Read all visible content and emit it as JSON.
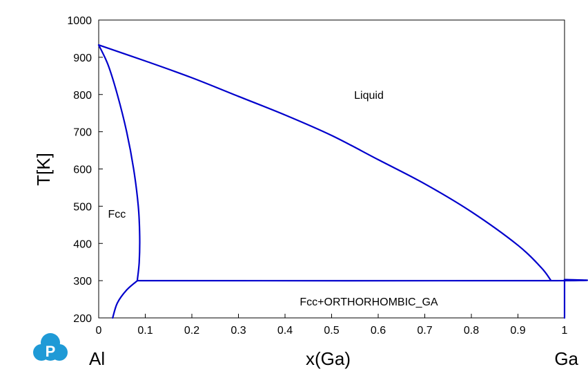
{
  "chart_data": {
    "type": "line",
    "title": "",
    "xlabel": "x(Ga)",
    "ylabel": "T[K]",
    "xlim": [
      0,
      1
    ],
    "ylim": [
      200,
      1000
    ],
    "x_ticks": [
      "0",
      "0.1",
      "0.2",
      "0.3",
      "0.4",
      "0.5",
      "0.6",
      "0.7",
      "0.8",
      "0.9",
      "1"
    ],
    "y_ticks": [
      "200",
      "300",
      "400",
      "500",
      "600",
      "700",
      "800",
      "900",
      "1000"
    ],
    "x_end_labels": {
      "left": "Al",
      "right": "Ga"
    },
    "grid": false,
    "line_color": "#0000cc",
    "logo_color": "#1f9ad6",
    "regions": [
      {
        "label": "Liquid",
        "x": 0.58,
        "y": 800
      },
      {
        "label": "Fcc",
        "x": 0.045,
        "y": 480
      },
      {
        "label": "Fcc+ORTHORHOMBIC_GA",
        "x": 0.58,
        "y": 245
      }
    ],
    "series": [
      {
        "values": [
          [
            0,
            933
          ],
          [
            0.1,
            890
          ],
          [
            0.2,
            845
          ],
          [
            0.3,
            795
          ],
          [
            0.4,
            745
          ],
          [
            0.5,
            690
          ],
          [
            0.6,
            625
          ],
          [
            0.7,
            560
          ],
          [
            0.8,
            485
          ],
          [
            0.9,
            395
          ],
          [
            0.95,
            335
          ],
          [
            0.97,
            302
          ]
        ]
      },
      {
        "values": [
          [
            0,
            933
          ],
          [
            0.02,
            880
          ],
          [
            0.04,
            800
          ],
          [
            0.06,
            700
          ],
          [
            0.075,
            600
          ],
          [
            0.085,
            500
          ],
          [
            0.088,
            420
          ],
          [
            0.087,
            350
          ],
          [
            0.083,
            302
          ]
        ]
      },
      {
        "values": [
          [
            0.083,
            300
          ],
          [
            0.975,
            300
          ],
          [
            1,
            303
          ]
        ]
      },
      {
        "values": [
          [
            0.083,
            300
          ],
          [
            0.06,
            275
          ],
          [
            0.04,
            240
          ],
          [
            0.03,
            200
          ]
        ]
      },
      {
        "values": [
          [
            1,
            300
          ],
          [
            1,
            200
          ]
        ]
      }
    ]
  }
}
